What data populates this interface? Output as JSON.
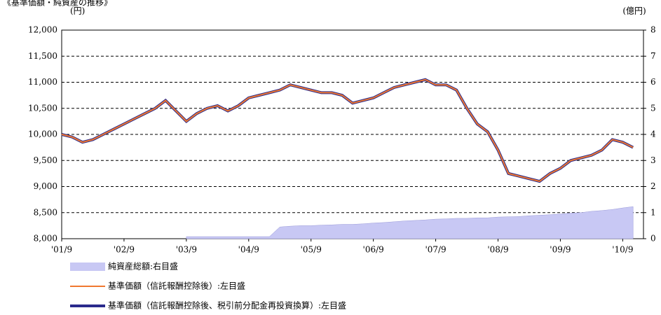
{
  "chart_data": {
    "type": "line",
    "title": "《基準価額・純資産の推移》",
    "y_label": "(円)",
    "y2_label": "(億円)",
    "x": [
      "2001-09",
      "2001-11",
      "2002-01",
      "2002-03",
      "2002-05",
      "2002-07",
      "2002-09",
      "2002-11",
      "2003-01",
      "2003-03",
      "2003-05",
      "2003-07",
      "2003-09",
      "2003-11",
      "2004-01",
      "2004-03",
      "2004-05",
      "2004-07",
      "2004-09",
      "2004-11",
      "2005-01",
      "2005-03",
      "2005-05",
      "2005-07",
      "2005-09",
      "2005-11",
      "2006-01",
      "2006-03",
      "2006-05",
      "2006-07",
      "2006-09",
      "2006-11",
      "2007-01",
      "2007-03",
      "2007-05",
      "2007-07",
      "2007-09",
      "2007-11",
      "2008-01",
      "2008-03",
      "2008-05",
      "2008-07",
      "2008-09",
      "2008-11",
      "2009-01",
      "2009-03",
      "2009-05",
      "2009-07",
      "2009-09",
      "2009-11",
      "2010-01",
      "2010-03",
      "2010-05",
      "2010-07",
      "2010-09",
      "2010-11"
    ],
    "series": [
      {
        "name": "純資産総額:右目盛",
        "color": "#c8c8f4",
        "kind": "area",
        "axis": "y2",
        "values": [
          null,
          null,
          null,
          null,
          null,
          null,
          null,
          null,
          null,
          null,
          null,
          null,
          0.08,
          0.08,
          0.08,
          0.08,
          0.08,
          0.08,
          0.08,
          0.08,
          0.08,
          0.45,
          0.48,
          0.5,
          0.5,
          0.52,
          0.53,
          0.55,
          0.55,
          0.57,
          0.6,
          0.62,
          0.65,
          0.68,
          0.7,
          0.72,
          0.75,
          0.76,
          0.78,
          0.78,
          0.8,
          0.8,
          0.83,
          0.84,
          0.85,
          0.88,
          0.9,
          0.92,
          0.95,
          0.98,
          1.0,
          1.05,
          1.08,
          1.12,
          1.18,
          1.23
        ]
      },
      {
        "name": "基準価額（信託報酬控除後）:左目盛",
        "color": "#f07830",
        "kind": "line",
        "width": 2,
        "values": [
          10000,
          9950,
          9850,
          9900,
          10000,
          10100,
          10200,
          10300,
          10400,
          10500,
          10650,
          10450,
          10250,
          10400,
          10500,
          10550,
          10450,
          10550,
          10700,
          10750,
          10800,
          10850,
          10950,
          10900,
          10850,
          10800,
          10800,
          10750,
          10600,
          10650,
          10700,
          10800,
          10900,
          10950,
          11000,
          11050,
          10950,
          10950,
          10850,
          10500,
          10200,
          10050,
          9700,
          9250,
          9200,
          9150,
          9100,
          9250,
          9350,
          9500,
          9550,
          9600,
          9700,
          9900,
          9850,
          9750
        ]
      },
      {
        "name": "基準価額（信託報酬控除後、税引前分配金再投資換算）:左目盛",
        "color": "#2a2a8c",
        "kind": "line",
        "width": 4,
        "values": [
          10000,
          9950,
          9850,
          9900,
          10000,
          10100,
          10200,
          10300,
          10400,
          10500,
          10650,
          10450,
          10250,
          10400,
          10500,
          10550,
          10450,
          10550,
          10700,
          10750,
          10800,
          10850,
          10950,
          10900,
          10850,
          10800,
          10800,
          10750,
          10600,
          10650,
          10700,
          10800,
          10900,
          10950,
          11000,
          11050,
          10950,
          10950,
          10850,
          10500,
          10200,
          10050,
          9700,
          9250,
          9200,
          9150,
          9100,
          9250,
          9350,
          9500,
          9550,
          9600,
          9700,
          9900,
          9850,
          9750
        ]
      }
    ],
    "xticks": [
      {
        "value": "2001-09",
        "label": "'01/9"
      },
      {
        "value": "2002-09",
        "label": "'02/9"
      },
      {
        "value": "2003-09",
        "label": "'03/9"
      },
      {
        "value": "2004-09",
        "label": "'04/9"
      },
      {
        "value": "2005-09",
        "label": "'05/9"
      },
      {
        "value": "2006-09",
        "label": "'06/9"
      },
      {
        "value": "2007-09",
        "label": "'07/9"
      },
      {
        "value": "2008-09",
        "label": "'08/9"
      },
      {
        "value": "2009-09",
        "label": "'09/9"
      },
      {
        "value": "2010-09",
        "label": "'10/9"
      }
    ],
    "xlim": [
      "2001-09",
      "2011-01"
    ],
    "ylim": [
      8000,
      12000
    ],
    "yticks": [
      {
        "value": 8000,
        "label": "8,000"
      },
      {
        "value": 8500,
        "label": "8,500"
      },
      {
        "value": 9000,
        "label": "9,000"
      },
      {
        "value": 9500,
        "label": "9,500"
      },
      {
        "value": 10000,
        "label": "10,000"
      },
      {
        "value": 10500,
        "label": "10,500"
      },
      {
        "value": 11000,
        "label": "11,000"
      },
      {
        "value": 11500,
        "label": "11,500"
      },
      {
        "value": 12000,
        "label": "12,000"
      }
    ],
    "y2lim": [
      0,
      8
    ],
    "y2ticks": [
      0,
      1,
      2,
      3,
      4,
      5,
      6,
      7,
      8
    ],
    "grid": true
  }
}
